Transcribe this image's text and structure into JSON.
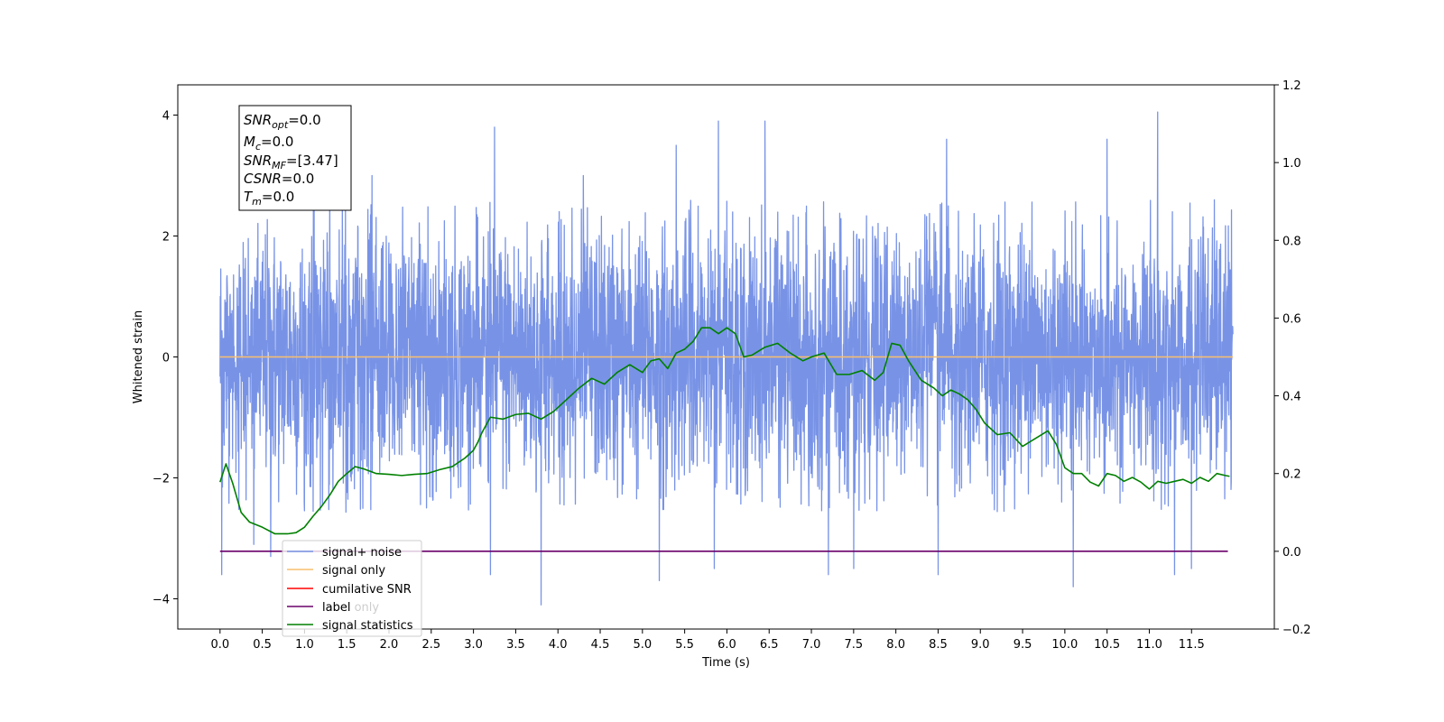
{
  "chart_data": {
    "type": "line",
    "xlabel": "Time (s)",
    "ylabel": "Whitened strain",
    "xlim": [
      -0.5,
      12.48
    ],
    "ylim": [
      -4.5,
      4.5
    ],
    "y2lim": [
      -0.2,
      1.2
    ],
    "x_ticks": [
      0.0,
      0.5,
      1.0,
      1.5,
      2.0,
      2.5,
      3.0,
      3.5,
      4.0,
      4.5,
      5.0,
      5.5,
      6.0,
      6.5,
      7.0,
      7.5,
      8.0,
      8.5,
      9.0,
      9.5,
      10.0,
      10.5,
      11.0,
      11.5
    ],
    "x_tick_labels": [
      "0.0",
      "0.5",
      "1.0",
      "1.5",
      "2.0",
      "2.5",
      "3.0",
      "3.5",
      "4.0",
      "4.5",
      "5.0",
      "5.5",
      "6.0",
      "6.5",
      "7.0",
      "7.5",
      "8.0",
      "8.5",
      "9.0",
      "9.5",
      "10.0",
      "10.5",
      "11.0",
      "11.5"
    ],
    "y_ticks": [
      -4,
      -2,
      0,
      2,
      4
    ],
    "y_tick_labels": [
      "−4",
      "−2",
      "0",
      "2",
      "4"
    ],
    "y2_ticks": [
      -0.2,
      0.0,
      0.2,
      0.4,
      0.6,
      0.8,
      1.0,
      1.2
    ],
    "y2_tick_labels": [
      "−0.2",
      "0.0",
      "0.2",
      "0.4",
      "0.6",
      "0.8",
      "1.0",
      "1.2"
    ],
    "grid": false,
    "legend_position": "lower-left",
    "series": [
      {
        "name": "signal+ noise",
        "color": "#7893e6",
        "axis": "left",
        "x_range": [
          0.0,
          11.99
        ],
        "noise_sigma": 0.95,
        "peaks": [
          {
            "x": 0.02,
            "y": -3.6
          },
          {
            "x": 0.4,
            "y": -3.1
          },
          {
            "x": 0.6,
            "y": -3.3
          },
          {
            "x": 1.3,
            "y": 2.9
          },
          {
            "x": 1.8,
            "y": 3.0
          },
          {
            "x": 3.2,
            "y": -3.6
          },
          {
            "x": 3.25,
            "y": 3.8
          },
          {
            "x": 3.8,
            "y": -4.1
          },
          {
            "x": 4.3,
            "y": 3.0
          },
          {
            "x": 5.2,
            "y": -3.7
          },
          {
            "x": 5.4,
            "y": 3.5
          },
          {
            "x": 5.85,
            "y": -3.5
          },
          {
            "x": 5.9,
            "y": 3.9
          },
          {
            "x": 6.45,
            "y": 3.9
          },
          {
            "x": 7.2,
            "y": -3.6
          },
          {
            "x": 7.5,
            "y": -3.5
          },
          {
            "x": 8.5,
            "y": -3.6
          },
          {
            "x": 8.6,
            "y": 3.6
          },
          {
            "x": 10.1,
            "y": -3.8
          },
          {
            "x": 11.1,
            "y": 4.05
          },
          {
            "x": 11.3,
            "y": -3.6
          },
          {
            "x": 11.5,
            "y": -3.5
          },
          {
            "x": 10.5,
            "y": 3.6
          }
        ]
      },
      {
        "name": "signal only",
        "color": "#f9bf6f",
        "axis": "left",
        "x": [
          0.0,
          11.99
        ],
        "values": [
          0.0,
          0.0
        ]
      },
      {
        "name": "cumilative SNR",
        "color": "#ff0000",
        "axis": "right",
        "x": [],
        "values": []
      },
      {
        "name": "label",
        "color": "#6a006a",
        "axis": "right",
        "x": [
          0.0,
          11.93
        ],
        "values": [
          0.0,
          0.0
        ]
      },
      {
        "name": "signal statistics",
        "color": "#008000",
        "axis": "right",
        "x": [
          0.0,
          0.07,
          0.15,
          0.25,
          0.35,
          0.5,
          0.65,
          0.8,
          0.9,
          1.0,
          1.1,
          1.2,
          1.3,
          1.4,
          1.5,
          1.6,
          1.7,
          1.85,
          2.0,
          2.15,
          2.3,
          2.45,
          2.6,
          2.75,
          2.9,
          3.0,
          3.05,
          3.1,
          3.2,
          3.35,
          3.5,
          3.65,
          3.8,
          3.95,
          4.1,
          4.25,
          4.4,
          4.55,
          4.7,
          4.85,
          5.0,
          5.1,
          5.2,
          5.3,
          5.4,
          5.5,
          5.6,
          5.7,
          5.8,
          5.9,
          6.0,
          6.1,
          6.2,
          6.3,
          6.45,
          6.6,
          6.75,
          6.9,
          7.0,
          7.15,
          7.3,
          7.45,
          7.6,
          7.75,
          7.85,
          7.95,
          8.05,
          8.15,
          8.3,
          8.45,
          8.55,
          8.65,
          8.75,
          8.85,
          8.95,
          9.05,
          9.2,
          9.35,
          9.5,
          9.65,
          9.8,
          9.9,
          10.0,
          10.1,
          10.2,
          10.3,
          10.4,
          10.5,
          10.6,
          10.7,
          10.8,
          10.9,
          11.0,
          11.1,
          11.2,
          11.3,
          11.4,
          11.5,
          11.6,
          11.7,
          11.8,
          11.9,
          11.95
        ],
        "values": [
          0.178,
          0.225,
          0.175,
          0.1,
          0.075,
          0.062,
          0.045,
          0.045,
          0.048,
          0.062,
          0.09,
          0.115,
          0.145,
          0.18,
          0.2,
          0.218,
          0.212,
          0.2,
          0.198,
          0.195,
          0.198,
          0.2,
          0.21,
          0.218,
          0.24,
          0.26,
          0.28,
          0.305,
          0.345,
          0.34,
          0.352,
          0.355,
          0.34,
          0.36,
          0.39,
          0.42,
          0.445,
          0.43,
          0.46,
          0.48,
          0.46,
          0.49,
          0.495,
          0.47,
          0.51,
          0.52,
          0.54,
          0.575,
          0.575,
          0.56,
          0.575,
          0.56,
          0.5,
          0.505,
          0.525,
          0.535,
          0.51,
          0.49,
          0.5,
          0.51,
          0.455,
          0.455,
          0.465,
          0.44,
          0.46,
          0.535,
          0.53,
          0.49,
          0.44,
          0.42,
          0.4,
          0.415,
          0.405,
          0.39,
          0.365,
          0.33,
          0.3,
          0.305,
          0.27,
          0.29,
          0.31,
          0.275,
          0.215,
          0.2,
          0.2,
          0.178,
          0.168,
          0.2,
          0.195,
          0.18,
          0.19,
          0.178,
          0.16,
          0.18,
          0.175,
          0.18,
          0.185,
          0.175,
          0.19,
          0.18,
          0.2,
          0.195,
          0.193
        ]
      }
    ],
    "info_box": {
      "lines": [
        {
          "label": "SNR",
          "sub": "opt",
          "value": "=0.0"
        },
        {
          "label": "M",
          "sub": "c",
          "value": "=0.0"
        },
        {
          "label": "SNR",
          "sub": "MF",
          "value": "=[3.47]"
        },
        {
          "label": "CSNR",
          "sub": "",
          "value": "=0.0"
        },
        {
          "label": "T",
          "sub": "m",
          "value": "=0.0"
        }
      ]
    },
    "overlay_text": "label only"
  }
}
